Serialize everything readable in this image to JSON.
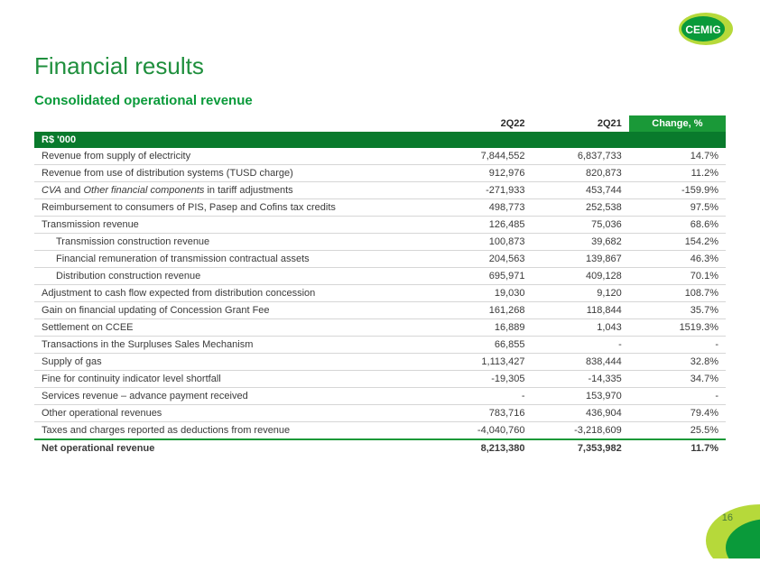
{
  "brand": {
    "name": "CEMIG",
    "logo_bg_outer": "#b6d93a",
    "logo_bg_inner": "#0a9a3a",
    "logo_text_color": "#ffffff"
  },
  "title": {
    "text": "Financial results",
    "color": "#1f8f3d"
  },
  "subtitle": {
    "text": "Consolidated operational revenue",
    "color": "#0a9a3a"
  },
  "headers": {
    "col2": "2Q22",
    "col3": "2Q21",
    "col4": "Change, %"
  },
  "unit_label": "R$ '000",
  "header_bg": "#097a2c",
  "change_hdr_bg": "#1a9938",
  "border_color": "#d6d6d6",
  "total_border": "#1a9938",
  "rows": [
    {
      "label": "Revenue from supply of electricity",
      "v1": "7,844,552",
      "v2": "6,837,733",
      "ch": "14.7%",
      "indent": false
    },
    {
      "label": "Revenue from use of distribution systems (TUSD charge)",
      "v1": "912,976",
      "v2": "820,873",
      "ch": "11.2%",
      "indent": false
    },
    {
      "label": "CVA and Other financial components in tariff adjustments",
      "v1": "-271,933",
      "v2": "453,744",
      "ch": "-159.9%",
      "indent": false,
      "italic_html": "<span class='italic'>CVA</span> and <span class='italic'>Other financial components</span> in tariff adjustments"
    },
    {
      "label": "Reimbursement to consumers of PIS, Pasep and Cofins tax credits",
      "v1": "498,773",
      "v2": "252,538",
      "ch": "97.5%",
      "indent": false
    },
    {
      "label": "Transmission revenue",
      "v1": "126,485",
      "v2": "75,036",
      "ch": "68.6%",
      "indent": false
    },
    {
      "label": "Transmission construction revenue",
      "v1": "100,873",
      "v2": "39,682",
      "ch": "154.2%",
      "indent": true
    },
    {
      "label": "Financial remuneration of transmission contractual assets",
      "v1": "204,563",
      "v2": "139,867",
      "ch": "46.3%",
      "indent": true
    },
    {
      "label": "Distribution construction revenue",
      "v1": "695,971",
      "v2": "409,128",
      "ch": "70.1%",
      "indent": true
    },
    {
      "label": "Adjustment to cash flow expected from distribution concession",
      "v1": "19,030",
      "v2": "9,120",
      "ch": "108.7%",
      "indent": false
    },
    {
      "label": "Gain on financial updating of Concession Grant Fee",
      "v1": "161,268",
      "v2": "118,844",
      "ch": "35.7%",
      "indent": false
    },
    {
      "label": "Settlement on CCEE",
      "v1": "16,889",
      "v2": "1,043",
      "ch": "1519.3%",
      "indent": false
    },
    {
      "label": "Transactions in the Surpluses Sales Mechanism",
      "v1": "66,855",
      "v2": "-",
      "ch": "-",
      "indent": false
    },
    {
      "label": "Supply of gas",
      "v1": "1,113,427",
      "v2": "838,444",
      "ch": "32.8%",
      "indent": false
    },
    {
      "label": "Fine for continuity indicator level shortfall",
      "v1": "-19,305",
      "v2": "-14,335",
      "ch": "34.7%",
      "indent": false
    },
    {
      "label": "Services revenue – advance payment received",
      "v1": "-",
      "v2": "153,970",
      "ch": "-",
      "indent": false
    },
    {
      "label": "Other operational revenues",
      "v1": "783,716",
      "v2": "436,904",
      "ch": "79.4%",
      "indent": false
    },
    {
      "label": "Taxes and charges reported as deductions from revenue",
      "v1": "-4,040,760",
      "v2": "-3,218,609",
      "ch": "25.5%",
      "indent": false
    }
  ],
  "total": {
    "label": "Net operational revenue",
    "v1": "8,213,380",
    "v2": "7,353,982",
    "ch": "11.7%"
  },
  "page_number": "16",
  "corner_colors": {
    "outer": "#b6d93a",
    "inner": "#0a9a3a"
  }
}
